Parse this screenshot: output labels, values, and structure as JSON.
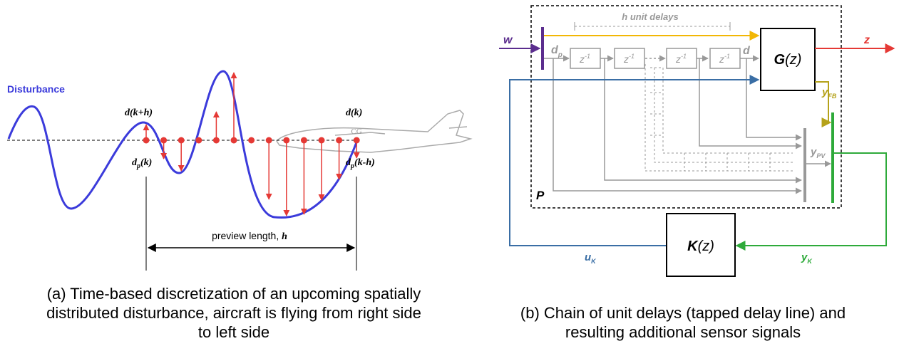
{
  "panel_a": {
    "disturbance_label": "Disturbance",
    "d_future": {
      "base": "d",
      "rest": "(k+h)"
    },
    "d_now": {
      "base": "d",
      "rest": "(k)"
    },
    "dp_now": {
      "base": "d",
      "sub": "p",
      "rest": "(k)"
    },
    "dp_past": {
      "base": "d",
      "sub": "p",
      "rest": "(k-h)"
    },
    "cg": "CG",
    "preview_label": {
      "text": "preview length, ",
      "sym": "h"
    },
    "caption": [
      "(a) Time-based discretization of an upcoming spatially",
      "distributed disturbance, aircraft is flying from right side",
      "to left side"
    ]
  },
  "panel_b": {
    "w": "w",
    "z": "z",
    "delays_label": "h unit delays",
    "dp": {
      "base": "d",
      "sub": "p"
    },
    "d": "d",
    "delay_blocks": [
      {
        "base": "z",
        "sup": "-1"
      },
      {
        "base": "z",
        "sup": "-1"
      },
      {
        "base": "z",
        "sup": "-1"
      },
      {
        "base": "z",
        "sup": "-1"
      }
    ],
    "G": {
      "base": "G",
      "rest": "(z)"
    },
    "y_fb": {
      "base": "y",
      "sub": "FB"
    },
    "y_pv": {
      "base": "y",
      "sub": "PV"
    },
    "P": "P",
    "K": {
      "base": "K",
      "rest": "(z)"
    },
    "u_k": {
      "base": "u",
      "sub": "K"
    },
    "y_k": {
      "base": "y",
      "sub": "K"
    },
    "caption": [
      "(b) Chain of unit delays (tapped delay line) and",
      "resulting additional sensor signals"
    ]
  }
}
